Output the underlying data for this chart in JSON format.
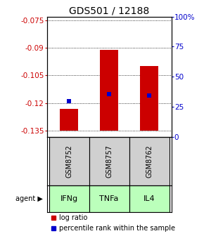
{
  "title": "GDS501 / 12188",
  "samples": [
    "GSM8752",
    "GSM8757",
    "GSM8762"
  ],
  "agents": [
    "IFNg",
    "TNFa",
    "IL4"
  ],
  "log_ratio_values": [
    -0.123,
    -0.091,
    -0.1
  ],
  "percentile_values": [
    -0.119,
    -0.115,
    -0.116
  ],
  "bar_bottom": -0.135,
  "ylim_left": [
    -0.1385,
    -0.073
  ],
  "ylim_right": [
    0.0,
    1.0
  ],
  "yticks_left": [
    -0.135,
    -0.12,
    -0.105,
    -0.09,
    -0.075
  ],
  "yticks_right": [
    0.0,
    0.25,
    0.5,
    0.75,
    1.0
  ],
  "yticklabels_left": [
    "-0.135",
    "-0.12",
    "-0.105",
    "-0.09",
    "-0.075"
  ],
  "yticklabels_right": [
    "0",
    "25",
    "50",
    "75",
    "100%"
  ],
  "bar_color": "#cc0000",
  "marker_color": "#0000cc",
  "agent_bg_color": "#bbffbb",
  "sample_bg_color": "#d0d0d0",
  "title_fontsize": 10,
  "tick_fontsize": 7.5,
  "sample_fontsize": 7,
  "agent_fontsize": 8,
  "legend_fontsize": 7
}
